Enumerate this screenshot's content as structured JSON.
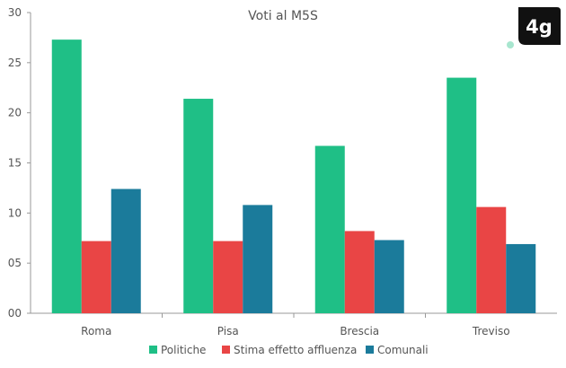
{
  "chart_data": {
    "type": "bar",
    "title": "Voti al M5S",
    "categories": [
      "Roma",
      "Pisa",
      "Brescia",
      "Treviso"
    ],
    "series": [
      {
        "name": "Politiche",
        "color": "#1fbf86",
        "values": [
          27.3,
          21.4,
          16.7,
          23.5
        ]
      },
      {
        "name": "Stima effetto affluenza",
        "color": "#e94545",
        "values": [
          7.2,
          7.2,
          8.2,
          10.6
        ]
      },
      {
        "name": "Comunali",
        "color": "#1b7b9b",
        "values": [
          12.4,
          10.8,
          7.3,
          6.9
        ]
      }
    ],
    "ylim": [
      0,
      30
    ],
    "yticks": [
      0,
      5,
      10,
      15,
      20,
      25,
      30
    ],
    "ytick_labels": [
      "00",
      "05",
      "10",
      "15",
      "20",
      "25",
      "30"
    ],
    "xlabel": "",
    "ylabel": "",
    "grid": false,
    "legend_position": "bottom"
  },
  "logo": {
    "text": "4g",
    "bg_color": "#111111",
    "dot_color": "#a8e6cf"
  }
}
